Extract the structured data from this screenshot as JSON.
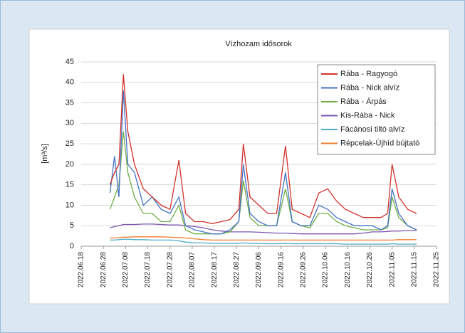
{
  "chart_data": {
    "type": "line",
    "title": "Vízhozam idősorok",
    "y_label": "[m³/s]",
    "x": [
      "2022.07.01",
      "2022.07.03",
      "2022.07.05",
      "2022.07.07",
      "2022.07.09",
      "2022.07.12",
      "2022.07.16",
      "2022.07.20",
      "2022.07.24",
      "2022.07.28",
      "2022.08.01",
      "2022.08.04",
      "2022.08.08",
      "2022.08.12",
      "2022.08.16",
      "2022.08.20",
      "2022.08.24",
      "2022.08.28",
      "2022.08.30",
      "2022.09.02",
      "2022.09.06",
      "2022.09.10",
      "2022.09.14",
      "2022.09.18",
      "2022.09.21",
      "2022.09.25",
      "2022.09.29",
      "2022.10.03",
      "2022.10.07",
      "2022.10.11",
      "2022.10.15",
      "2022.10.19",
      "2022.10.23",
      "2022.10.27",
      "2022.10.31",
      "2022.11.03",
      "2022.11.05",
      "2022.11.08",
      "2022.11.12",
      "2022.11.16"
    ],
    "series": [
      {
        "name": "Rába - Ragyogó",
        "color": "#d2312b",
        "values": [
          15,
          18,
          20,
          42,
          28,
          20,
          14,
          12,
          10,
          9,
          21,
          8,
          6,
          6,
          5.5,
          6,
          6.5,
          9,
          25,
          12,
          10,
          8,
          8,
          24.5,
          9,
          8,
          7,
          13,
          14,
          11,
          9,
          8,
          7,
          7,
          7,
          8,
          20,
          12,
          9,
          8
        ]
      },
      {
        "name": "Rába - Nick alvíz",
        "color": "#4472c4",
        "values": [
          13,
          22,
          12,
          38,
          20,
          18,
          10,
          12,
          9,
          8,
          12,
          5,
          4,
          3.5,
          3,
          3,
          4,
          6,
          20,
          8,
          6,
          5,
          5,
          18,
          6,
          5,
          5,
          10,
          9,
          7,
          6,
          5,
          5,
          5,
          4,
          5,
          14,
          8,
          5,
          4
        ]
      },
      {
        "name": "Rába - Árpás",
        "color": "#70ad47",
        "values": [
          9,
          12,
          15,
          28,
          18,
          12,
          8,
          8,
          6,
          6,
          10,
          4,
          3,
          3,
          3,
          3,
          3.5,
          6,
          16,
          7,
          5,
          5,
          5,
          14,
          6,
          5,
          4.5,
          8,
          8,
          6,
          5,
          4.5,
          4,
          4,
          4,
          4.5,
          12,
          7,
          5,
          4
        ]
      },
      {
        "name": "Kis-Rába - Nick",
        "color": "#7b57b0",
        "values": [
          4.5,
          4.8,
          5,
          5.3,
          5.3,
          5.3,
          5.4,
          5.4,
          5.3,
          5.2,
          5.2,
          5,
          4.8,
          4.5,
          4,
          3.7,
          3.5,
          3.5,
          3.5,
          3.5,
          3.4,
          3.3,
          3.2,
          3.2,
          3.1,
          3,
          3,
          3,
          3,
          3,
          3,
          3,
          3.2,
          3.5,
          3.5,
          3.6,
          3.7,
          3.7,
          3.8,
          3.8
        ]
      },
      {
        "name": "Fácánosi tiltó alvíz",
        "color": "#4bacc6",
        "values": [
          1.5,
          1.5,
          1.6,
          1.7,
          1.7,
          1.6,
          1.6,
          1.5,
          1.5,
          1.5,
          1.3,
          1,
          0.8,
          0.8,
          0.7,
          0.7,
          0.7,
          0.7,
          0.8,
          0.7,
          0.7,
          0.6,
          0.6,
          0.7,
          0.6,
          0.6,
          0.6,
          0.6,
          0.6,
          0.6,
          0.5,
          0.5,
          0.5,
          0.5,
          0.5,
          0.5,
          0.6,
          0.5,
          0.5,
          0.5
        ]
      },
      {
        "name": "Répcelak-Újhíd bújtató",
        "color": "#ed7d31",
        "values": [
          2,
          2,
          2.1,
          2.2,
          2.2,
          2.3,
          2.3,
          2.3,
          2.3,
          2.2,
          2.1,
          2,
          1.8,
          1.6,
          1.5,
          1.5,
          1.5,
          1.5,
          1.5,
          1.5,
          1.5,
          1.5,
          1.5,
          1.5,
          1.5,
          1.5,
          1.5,
          1.5,
          1.5,
          1.5,
          1.5,
          1.5,
          1.5,
          1.5,
          1.5,
          1.5,
          1.5,
          1.6,
          1.6,
          1.6
        ]
      }
    ],
    "xlim": [
      "2022.06.18",
      "2022.11.25"
    ],
    "xticks": [
      "2022.06.18",
      "2022.06.28",
      "2022.07.08",
      "2022.07.18",
      "2022.07.28",
      "2022.08.07",
      "2022.08.17",
      "2022.08.27",
      "2022.09.06",
      "2022.09.16",
      "2022.09.26",
      "2022.10.06",
      "2022.10.16",
      "2022.10.26",
      "2022.11.05",
      "2022.11.15",
      "2022.11.25"
    ],
    "ylim": [
      0,
      45
    ],
    "yticks": [
      0,
      5,
      10,
      15,
      20,
      25,
      30,
      35,
      40,
      45
    ],
    "grid": true,
    "legend": "top-right"
  }
}
